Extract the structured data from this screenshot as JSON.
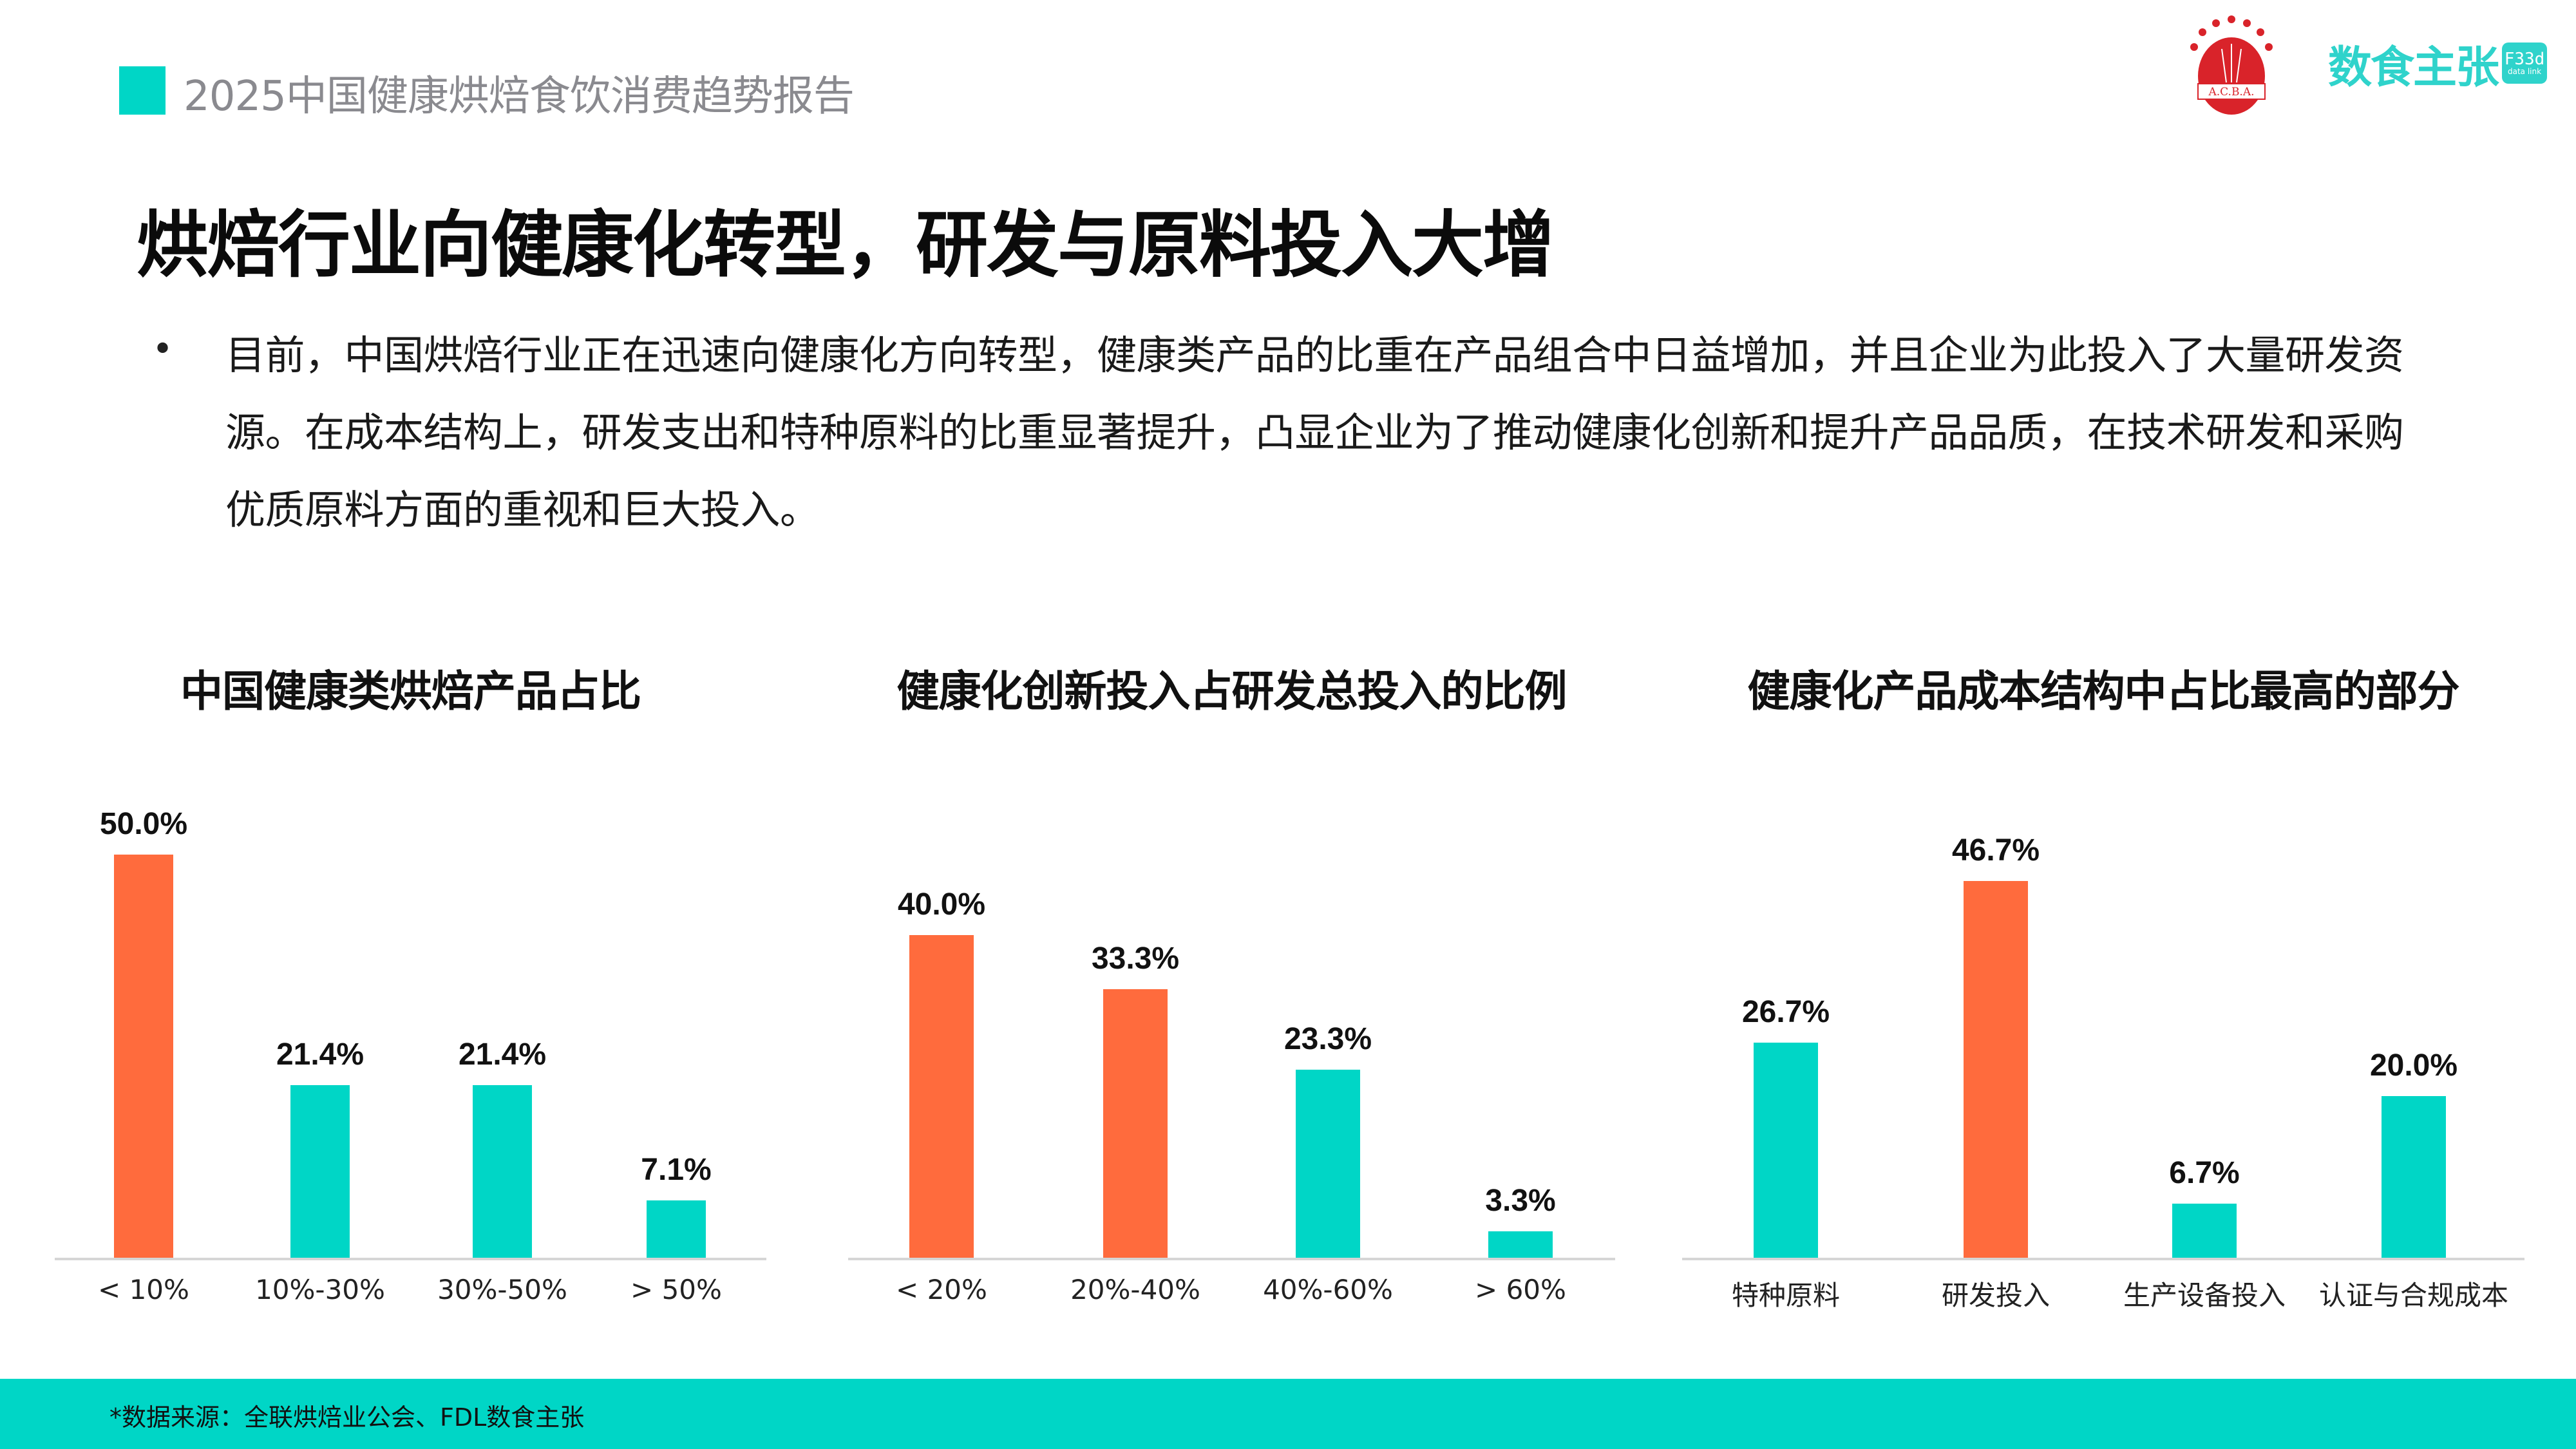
{
  "header": {
    "report_title": "2025中国健康烘焙食饮消费趋势报告",
    "accent_color": "#00D6C6"
  },
  "logos": {
    "acba": {
      "text": "A.C.B.A.",
      "icon": "acba-wheat-emblem-icon",
      "color": "#d9232a"
    },
    "fdl": {
      "cn": "数食主张",
      "badge_top": "F33d",
      "badge_bottom": "data link",
      "color": "#2fd3cb"
    }
  },
  "slide": {
    "title": "烘焙行业向健康化转型，研发与原料投入大增",
    "bullet": "目前，中国烘焙行业正在迅速向健康化方向转型，健康类产品的比重在产品组合中日益增加，并且企业为此投入了大量研发资源。在成本结构上，研发支出和特种原料的比重显著提升，凸显企业为了推动健康化创新和提升产品品质，在技术研发和采购优质原料方面的重视和巨大投入。"
  },
  "colors": {
    "highlight": "#FF6B3D",
    "normal": "#00D6C6",
    "axis": "#d6d6d6"
  },
  "chart_data": [
    {
      "type": "bar",
      "title": "中国健康类烘焙产品占比",
      "categories": [
        "< 10%",
        "10%-30%",
        "30%-50%",
        "> 50%"
      ],
      "values": [
        50.0,
        21.4,
        21.4,
        7.1
      ],
      "labels": [
        "50.0%",
        "21.4%",
        "21.4%",
        "7.1%"
      ],
      "highlight": [
        true,
        false,
        false,
        false
      ],
      "xlabel": "",
      "ylabel": "",
      "ylim": [
        0,
        50
      ],
      "grid": false,
      "legend": "none"
    },
    {
      "type": "bar",
      "title": "健康化创新投入占研发总投入的比例",
      "categories": [
        "< 20%",
        "20%-40%",
        "40%-60%",
        "> 60%"
      ],
      "values": [
        40.0,
        33.3,
        23.3,
        3.3
      ],
      "labels": [
        "40.0%",
        "33.3%",
        "23.3%",
        "3.3%"
      ],
      "highlight": [
        true,
        true,
        false,
        false
      ],
      "xlabel": "",
      "ylabel": "",
      "ylim": [
        0,
        50
      ],
      "grid": false,
      "legend": "none"
    },
    {
      "type": "bar",
      "title": "健康化产品成本结构中占比最高的部分",
      "categories": [
        "特种原料",
        "研发投入",
        "生产设备投入",
        "认证与合规成本"
      ],
      "values": [
        26.7,
        46.7,
        6.7,
        20.0
      ],
      "labels": [
        "26.7%",
        "46.7%",
        "6.7%",
        "20.0%"
      ],
      "highlight": [
        false,
        true,
        false,
        false
      ],
      "xlabel": "",
      "ylabel": "",
      "ylim": [
        0,
        50
      ],
      "grid": false,
      "legend": "none"
    }
  ],
  "footer": {
    "source": "*数据来源：全联烘焙业公会、FDL数食主张"
  }
}
